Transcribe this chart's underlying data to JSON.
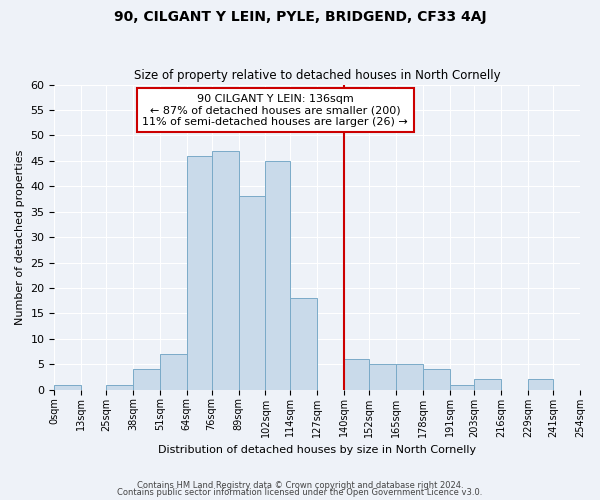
{
  "title": "90, CILGANT Y LEIN, PYLE, BRIDGEND, CF33 4AJ",
  "subtitle": "Size of property relative to detached houses in North Cornelly",
  "xlabel": "Distribution of detached houses by size in North Cornelly",
  "ylabel": "Number of detached properties",
  "bar_color": "#c9daea",
  "bar_edge_color": "#7aaac8",
  "bg_color": "#eef2f8",
  "grid_color": "#ffffff",
  "vline_x": 140,
  "vline_color": "#cc0000",
  "annotation_title": "90 CILGANT Y LEIN: 136sqm",
  "annotation_line1": "← 87% of detached houses are smaller (200)",
  "annotation_line2": "11% of semi-detached houses are larger (26) →",
  "annotation_box_color": "#cc0000",
  "bin_edges": [
    0,
    13,
    25,
    38,
    51,
    64,
    76,
    89,
    102,
    114,
    127,
    140,
    152,
    165,
    178,
    191,
    203,
    216,
    229,
    241,
    254
  ],
  "bin_counts": [
    1,
    0,
    1,
    4,
    7,
    46,
    47,
    38,
    45,
    18,
    0,
    6,
    5,
    5,
    4,
    1,
    2,
    0,
    2,
    0
  ],
  "xtick_labels": [
    "0sqm",
    "13sqm",
    "25sqm",
    "38sqm",
    "51sqm",
    "64sqm",
    "76sqm",
    "89sqm",
    "102sqm",
    "114sqm",
    "127sqm",
    "140sqm",
    "152sqm",
    "165sqm",
    "178sqm",
    "191sqm",
    "203sqm",
    "216sqm",
    "229sqm",
    "241sqm",
    "254sqm"
  ],
  "ylim": [
    0,
    60
  ],
  "yticks": [
    0,
    5,
    10,
    15,
    20,
    25,
    30,
    35,
    40,
    45,
    50,
    55,
    60
  ],
  "footnote1": "Contains HM Land Registry data © Crown copyright and database right 2024.",
  "footnote2": "Contains public sector information licensed under the Open Government Licence v3.0."
}
